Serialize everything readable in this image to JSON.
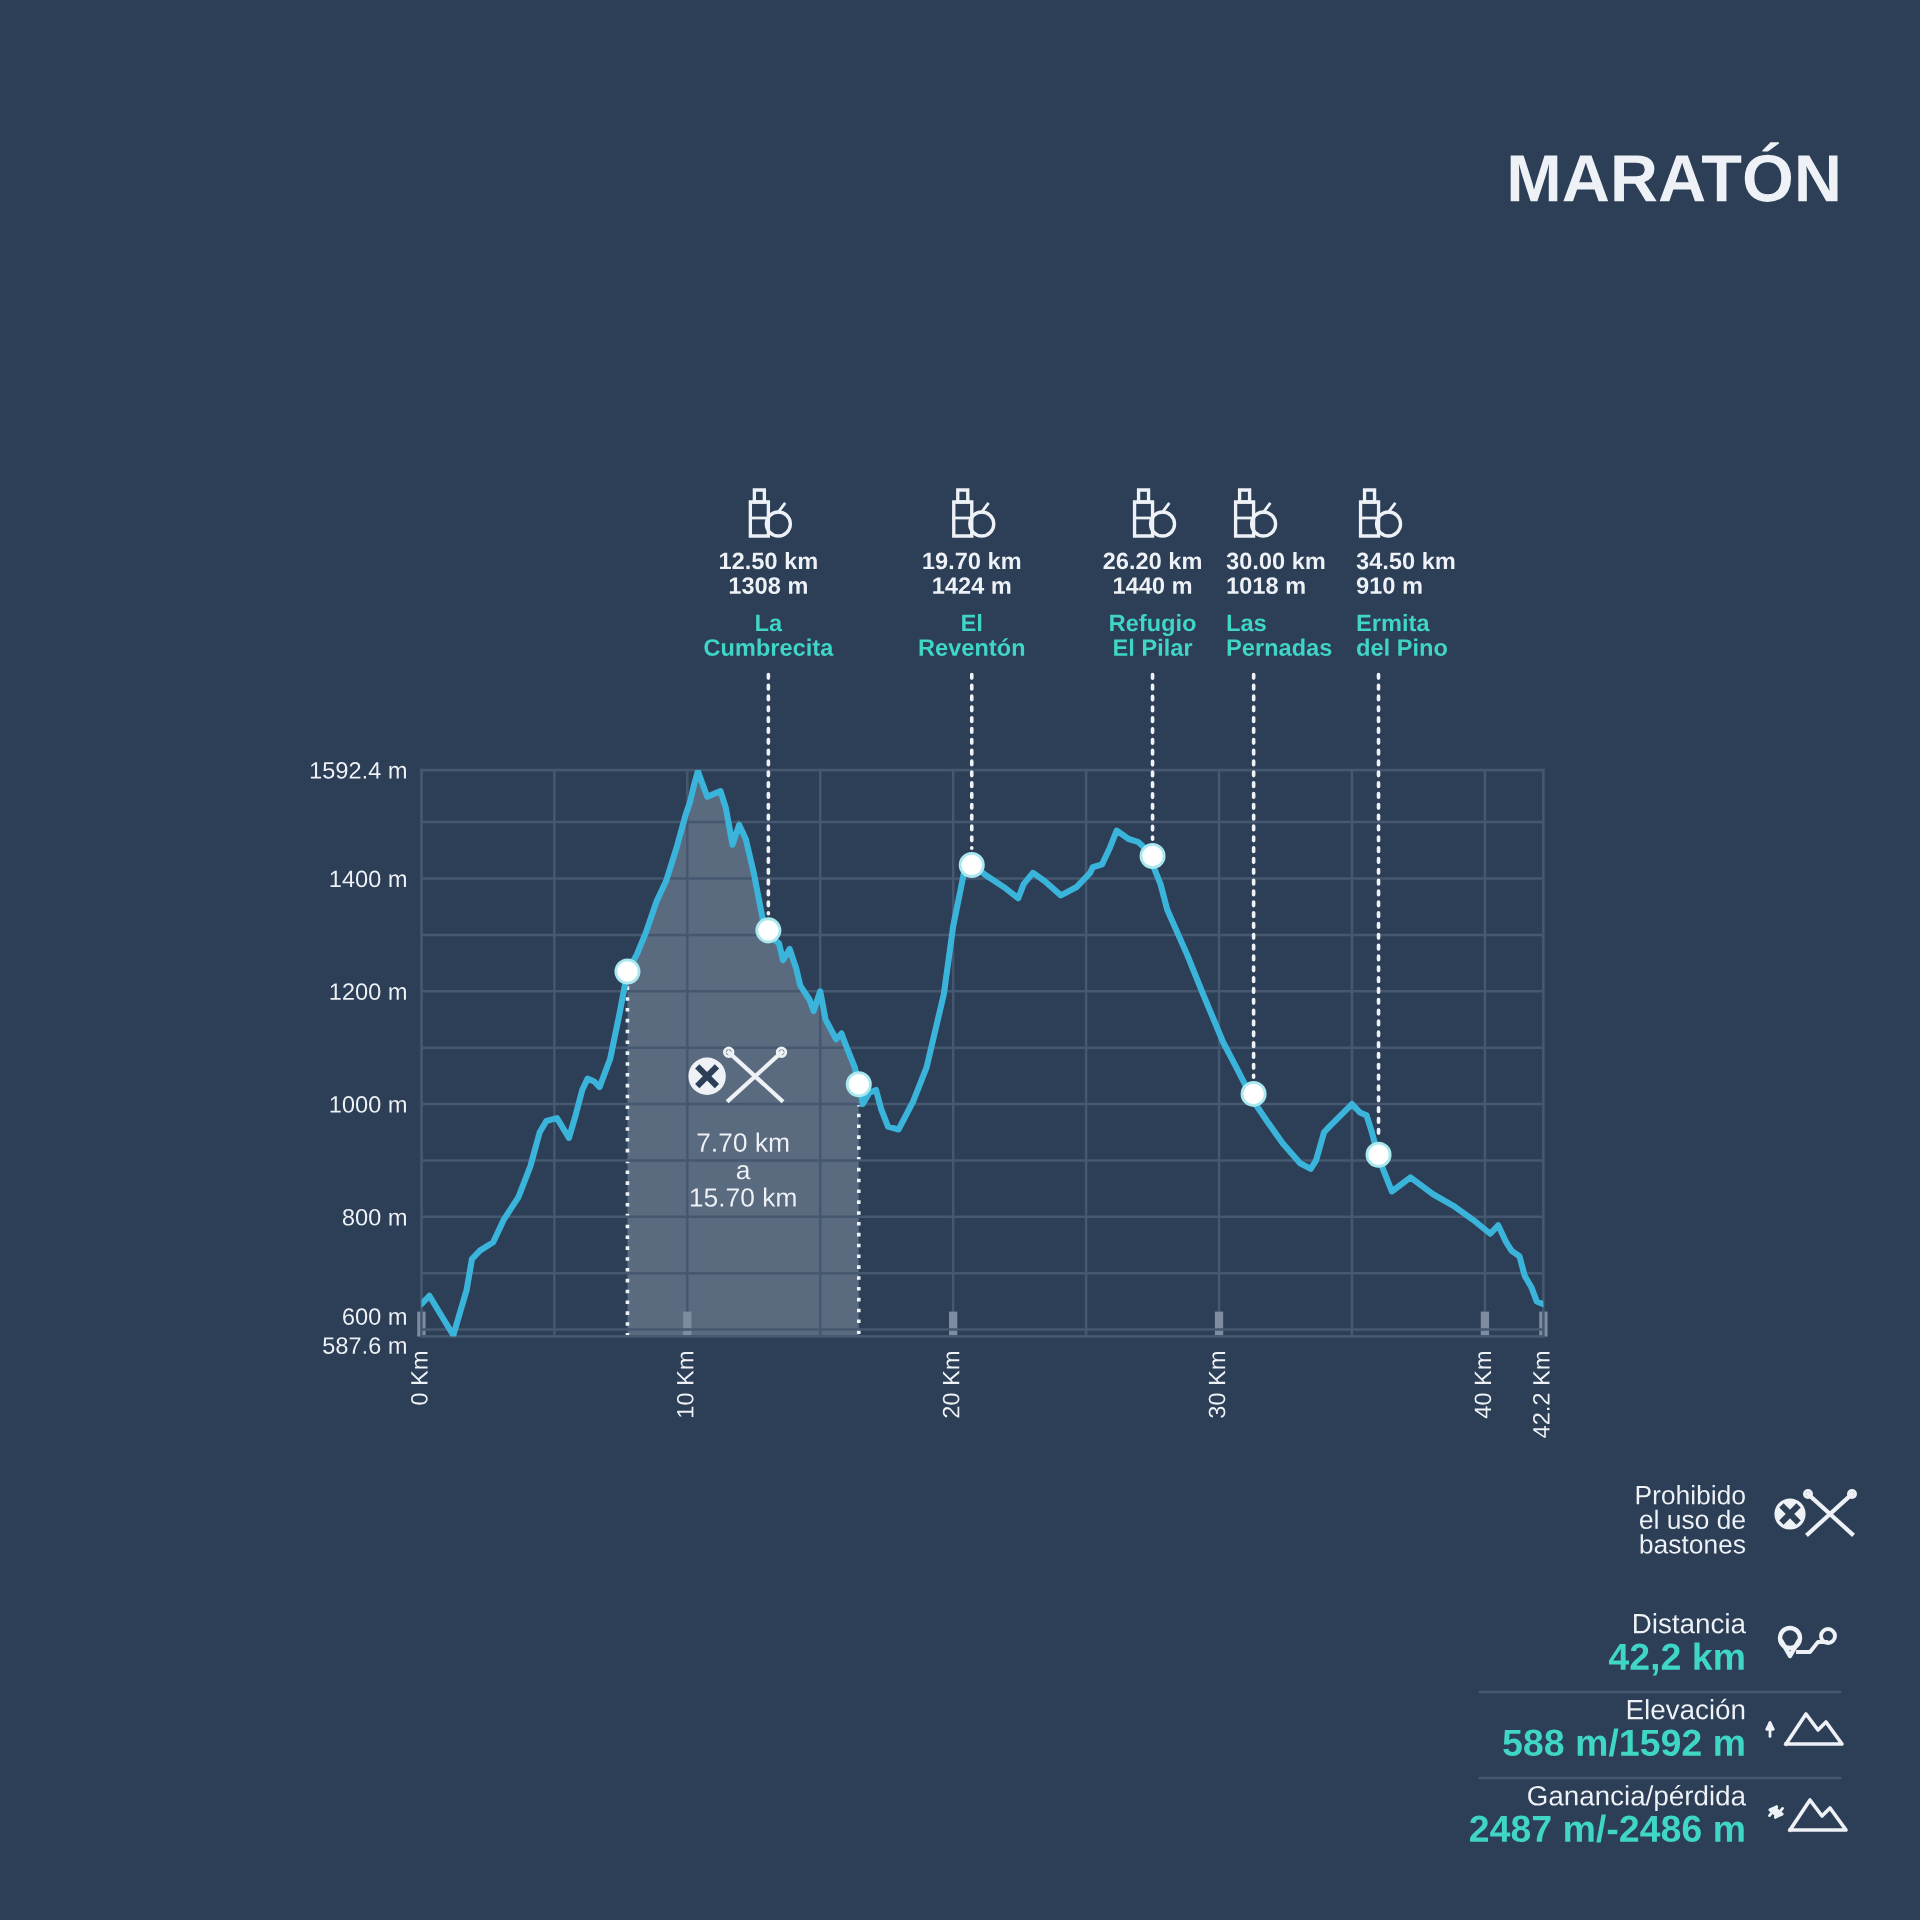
{
  "chart_data": [
    {
      "type": "line",
      "title": "MARATÓN",
      "series": [
        {
          "type": "area",
          "color": "#5a6a7f",
          "line_style": "dotted",
          "x": [
            7.75,
            8.1,
            8.45,
            8.85,
            9.2,
            9.6,
            9.95,
            10.1,
            10.25,
            10.4,
            10.75,
            11.0,
            11.25,
            11.45,
            11.7,
            11.95,
            12.2,
            12.5,
            12.85,
            13.05,
            13.45,
            13.6,
            13.85,
            14.1,
            14.25,
            14.6,
            14.75,
            15.0,
            15.2,
            15.6,
            15.8,
            16.0,
            16.3,
            16.45
          ],
          "values": [
            1235,
            1265,
            1305,
            1360,
            1395,
            1455,
            1515,
            1535,
            1565,
            1590,
            1545,
            1550,
            1555,
            1525,
            1460,
            1495,
            1470,
            1410,
            1325,
            1300,
            1285,
            1255,
            1275,
            1240,
            1210,
            1185,
            1165,
            1200,
            1150,
            1115,
            1125,
            1100,
            1065,
            1035
          ]
        },
        {
          "type": "line",
          "color": "#3ab4da",
          "x": [
            0,
            0.3,
            1.2,
            1.45,
            1.7,
            1.9,
            2.2,
            2.7,
            3.1,
            3.65,
            4.1,
            4.45,
            4.7,
            5.1,
            5.55,
            5.8,
            6.05,
            6.25,
            6.5,
            6.7,
            7.1,
            7.45,
            7.75,
            8.1,
            8.45,
            8.85,
            9.2,
            9.6,
            9.95,
            10.1,
            10.25,
            10.4,
            10.75,
            11.0,
            11.25,
            11.45,
            11.7,
            11.95,
            12.2,
            12.5,
            12.85,
            13.05,
            13.45,
            13.6,
            13.85,
            14.1,
            14.25,
            14.6,
            14.75,
            15.0,
            15.2,
            15.6,
            15.8,
            16.0,
            16.3,
            16.45,
            16.6,
            16.85,
            17.1,
            17.3,
            17.55,
            17.95,
            18.5,
            19.0,
            19.65,
            20.0,
            20.45,
            20.7,
            21.25,
            21.9,
            22.45,
            22.65,
            23.0,
            23.45,
            24.05,
            24.65,
            25.15,
            25.25,
            25.6,
            25.9,
            26.15,
            26.6,
            26.95,
            27.3,
            27.5,
            27.8,
            28.05,
            28.8,
            29.4,
            30.15,
            30.65,
            31.3,
            31.8,
            32.4,
            33.05,
            33.45,
            33.65,
            33.95,
            34.15,
            35.0,
            35.3,
            35.55,
            35.75,
            36.0,
            36.25,
            36.5,
            37.2,
            38.05,
            38.8,
            39.55,
            40.2,
            40.5,
            40.8,
            41.0,
            41.3,
            41.5,
            41.75,
            41.95,
            42.2
          ],
          "values": [
            645,
            660,
            590,
            630,
            670,
            725,
            740,
            755,
            795,
            835,
            890,
            950,
            970,
            975,
            940,
            980,
            1025,
            1045,
            1040,
            1030,
            1080,
            1160,
            1235,
            1265,
            1305,
            1360,
            1395,
            1455,
            1515,
            1535,
            1565,
            1590,
            1545,
            1550,
            1555,
            1525,
            1460,
            1495,
            1470,
            1410,
            1325,
            1300,
            1285,
            1255,
            1275,
            1240,
            1210,
            1185,
            1165,
            1200,
            1150,
            1115,
            1125,
            1100,
            1065,
            1035,
            1000,
            1020,
            1025,
            990,
            960,
            955,
            1005,
            1065,
            1195,
            1315,
            1420,
            1425,
            1405,
            1385,
            1365,
            1390,
            1410,
            1395,
            1370,
            1385,
            1410,
            1420,
            1425,
            1455,
            1485,
            1470,
            1465,
            1450,
            1425,
            1390,
            1345,
            1265,
            1195,
            1110,
            1065,
            1005,
            970,
            930,
            895,
            885,
            900,
            950,
            960,
            1000,
            985,
            980,
            950,
            905,
            875,
            845,
            870,
            840,
            820,
            795,
            770,
            785,
            755,
            740,
            730,
            695,
            675,
            650,
            645
          ]
        },
        {
          "type": "scatter",
          "color": "#ffffff",
          "marker": "circle",
          "x": [
            7.75,
            13.05,
            16.45,
            20.7,
            27.5,
            31.3,
            36.0
          ],
          "values": [
            1235,
            1308,
            1035,
            1424,
            1440,
            1018,
            910
          ]
        }
      ],
      "xlim": [
        0,
        42.2
      ],
      "xticks": [
        {
          "value": 0,
          "label": "0 Km"
        },
        {
          "value": 5,
          "label": null
        },
        {
          "value": 10,
          "label": "10 Km"
        },
        {
          "value": 15,
          "label": null
        },
        {
          "value": 20,
          "label": "20 Km"
        },
        {
          "value": 25,
          "label": null
        },
        {
          "value": 30,
          "label": "30 Km"
        },
        {
          "value": 35,
          "label": null
        },
        {
          "value": 40,
          "label": "40 Km"
        },
        {
          "value": 42.2,
          "label": "42.2 Km"
        }
      ],
      "ylim": [
        587.6,
        1592.4
      ],
      "yticks": [
        {
          "value": 587.6,
          "label": "587.6 m"
        },
        {
          "value": 600,
          "label": "600 m"
        },
        {
          "value": 700,
          "label": null
        },
        {
          "value": 800,
          "label": "800 m"
        },
        {
          "value": 900,
          "label": null
        },
        {
          "value": 1000,
          "label": "1000 m"
        },
        {
          "value": 1100,
          "label": null
        },
        {
          "value": 1200,
          "label": "1200 m"
        },
        {
          "value": 1300,
          "label": null
        },
        {
          "value": 1400,
          "label": "1400 m"
        },
        {
          "value": 1500,
          "label": null
        },
        {
          "value": 1592.4,
          "label": "1592.4 m"
        }
      ],
      "grid": true,
      "annotations": [
        "12.50 km\n1308 m",
        {
          "text": "La\nCumbrecita",
          "x": 13.05,
          "y": 1308
        },
        "19.70 km\n1424 m",
        {
          "text": "El\nReventón",
          "x": 20.7,
          "y": 1424
        },
        "26.20 km\n1440 m",
        {
          "text": "Refugio\nEl Pilar",
          "x": 27.5,
          "y": 1440
        },
        "30.00 km\n1018 m",
        {
          "text": "Las\nPernadas",
          "x": 31.3,
          "y": 1018
        },
        "34.50 km\n910 m",
        {
          "text": "Ermita\ndel Pino",
          "x": 36.0,
          "y": 910
        },
        "7.70 km\na\n15.70 km"
      ]
    },
    {
      "type": "other",
      "annotations": [
        "Prohibido\nel uso de\nbastones",
        "Distancia",
        "42,2 km",
        "Elevación",
        "588 m/1592 m",
        "Ganancia/pérdida",
        "2487 m/-2486 m"
      ]
    }
  ]
}
